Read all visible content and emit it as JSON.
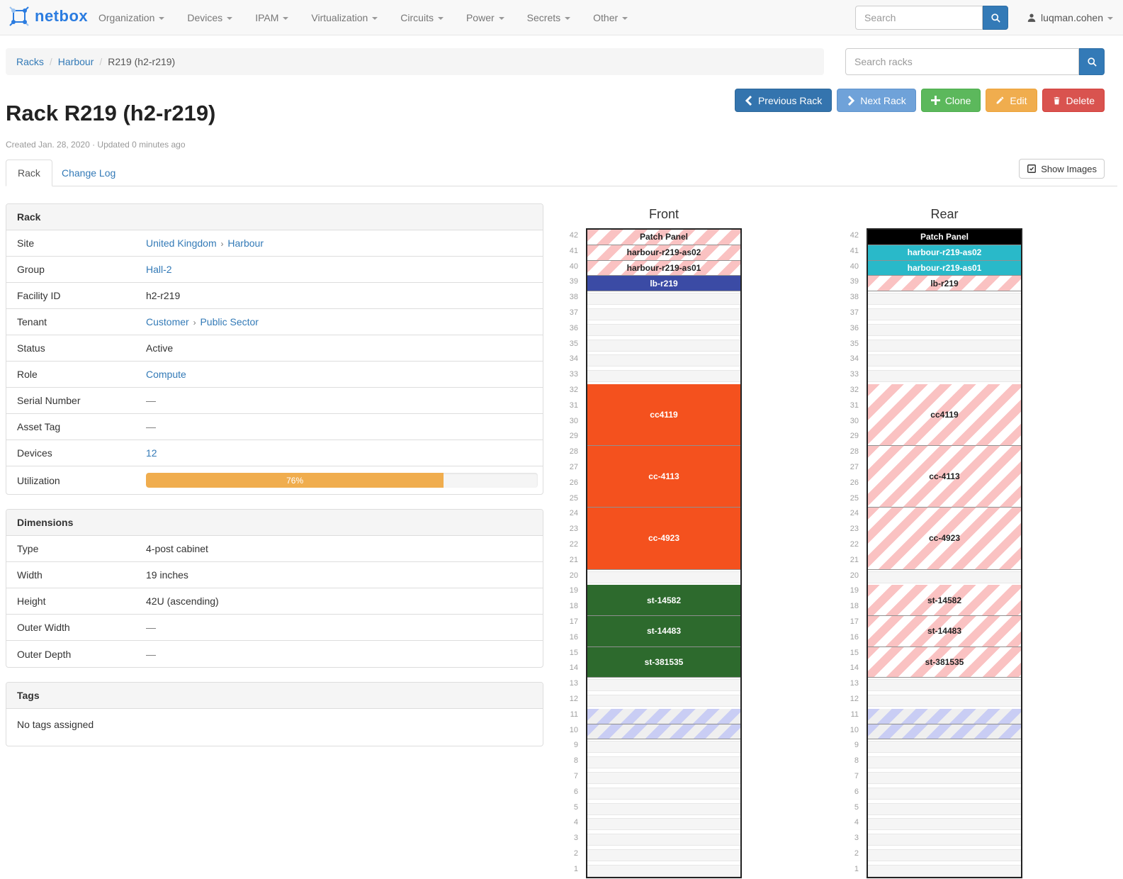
{
  "nav": {
    "brand": "netbox",
    "items": [
      "Organization",
      "Devices",
      "IPAM",
      "Virtualization",
      "Circuits",
      "Power",
      "Secrets",
      "Other"
    ],
    "search_placeholder": "Search",
    "user": "luqman.cohen"
  },
  "breadcrumb": {
    "links": [
      "Racks",
      "Harbour"
    ],
    "current": "R219 (h2-r219)",
    "search_placeholder": "Search racks"
  },
  "actions": {
    "previous": "Previous Rack",
    "next": "Next Rack",
    "clone": "Clone",
    "edit": "Edit",
    "delete": "Delete"
  },
  "page": {
    "title": "Rack R219 (h2-r219)",
    "meta": "Created Jan. 28, 2020 · Updated 0 minutes ago"
  },
  "tabs": {
    "rack": "Rack",
    "changelog": "Change Log",
    "show_images": "Show Images"
  },
  "rack_panel": {
    "title": "Rack",
    "rows": [
      {
        "label": "Site",
        "parts": [
          {
            "text": "United Kingdom",
            "kind": "link"
          },
          {
            "text": "›",
            "kind": "sep"
          },
          {
            "text": "Harbour",
            "kind": "link"
          }
        ]
      },
      {
        "label": "Group",
        "parts": [
          {
            "text": "Hall-2",
            "kind": "link"
          }
        ]
      },
      {
        "label": "Facility ID",
        "parts": [
          {
            "text": "h2-r219",
            "kind": "text"
          }
        ]
      },
      {
        "label": "Tenant",
        "parts": [
          {
            "text": "Customer",
            "kind": "link"
          },
          {
            "text": "›",
            "kind": "sep"
          },
          {
            "text": "Public Sector",
            "kind": "link"
          }
        ]
      },
      {
        "label": "Status",
        "parts": [
          {
            "text": "Active",
            "kind": "text"
          }
        ]
      },
      {
        "label": "Role",
        "parts": [
          {
            "text": "Compute",
            "kind": "link"
          }
        ]
      },
      {
        "label": "Serial Number",
        "parts": [
          {
            "text": "—",
            "kind": "muted"
          }
        ]
      },
      {
        "label": "Asset Tag",
        "parts": [
          {
            "text": "—",
            "kind": "muted"
          }
        ]
      },
      {
        "label": "Devices",
        "parts": [
          {
            "text": "12",
            "kind": "link"
          }
        ]
      },
      {
        "label": "Utilization",
        "progress": {
          "percent": 76,
          "label": "76%"
        }
      }
    ]
  },
  "dimensions_panel": {
    "title": "Dimensions",
    "rows": [
      {
        "label": "Type",
        "parts": [
          {
            "text": "4-post cabinet",
            "kind": "text"
          }
        ]
      },
      {
        "label": "Width",
        "parts": [
          {
            "text": "19 inches",
            "kind": "text"
          }
        ]
      },
      {
        "label": "Height",
        "parts": [
          {
            "text": "42U (ascending)",
            "kind": "text"
          }
        ]
      },
      {
        "label": "Outer Width",
        "parts": [
          {
            "text": "—",
            "kind": "muted"
          }
        ]
      },
      {
        "label": "Outer Depth",
        "parts": [
          {
            "text": "—",
            "kind": "muted"
          }
        ]
      }
    ]
  },
  "tags_panel": {
    "title": "Tags",
    "empty": "No tags assigned"
  },
  "elevations": {
    "front_title": "Front",
    "rear_title": "Rear",
    "total_units": 42,
    "units": [
      {
        "u": 42,
        "h": 1,
        "label": "Patch Panel",
        "front": "striped-pink",
        "rear": "solid-black"
      },
      {
        "u": 41,
        "h": 1,
        "label": "harbour-r219-as02",
        "front": "striped-pink",
        "rear": "solid-cyan"
      },
      {
        "u": 40,
        "h": 1,
        "label": "harbour-r219-as01",
        "front": "striped-pink",
        "rear": "solid-cyan"
      },
      {
        "u": 39,
        "h": 1,
        "label": "lb-r219",
        "front": "solid-indigo",
        "rear": "striped-pink"
      },
      {
        "u": 32,
        "h": 4,
        "label": "cc4119",
        "front": "solid-orange",
        "rear": "striped-pink"
      },
      {
        "u": 28,
        "h": 4,
        "label": "cc-4113",
        "front": "solid-orange",
        "rear": "striped-pink"
      },
      {
        "u": 24,
        "h": 4,
        "label": "cc-4923",
        "front": "solid-orange",
        "rear": "striped-pink"
      },
      {
        "u": 19,
        "h": 2,
        "label": "st-14582",
        "front": "solid-green",
        "rear": "striped-pink"
      },
      {
        "u": 17,
        "h": 2,
        "label": "st-14483",
        "front": "solid-green",
        "rear": "striped-pink"
      },
      {
        "u": 15,
        "h": 2,
        "label": "st-381535",
        "front": "solid-green",
        "rear": "striped-pink"
      },
      {
        "u": 11,
        "h": 1,
        "label": "",
        "front": "striped-blue",
        "rear": "striped-blue"
      },
      {
        "u": 10,
        "h": 1,
        "label": "",
        "front": "striped-blue",
        "rear": "striped-blue"
      }
    ],
    "colors": {
      "solid-black": "#000000",
      "solid-cyan": "#29b9c9",
      "solid-indigo": "#3b4ba5",
      "solid-orange": "#f4511e",
      "solid-green": "#2d6a2d",
      "striped-pink": {
        "stripe": "#fac2c2",
        "bg": "#ffffff"
      },
      "striped-blue": {
        "stripe": "#c9cdf4",
        "bg": "#efefef"
      }
    },
    "accent_link": "#337ab7"
  }
}
